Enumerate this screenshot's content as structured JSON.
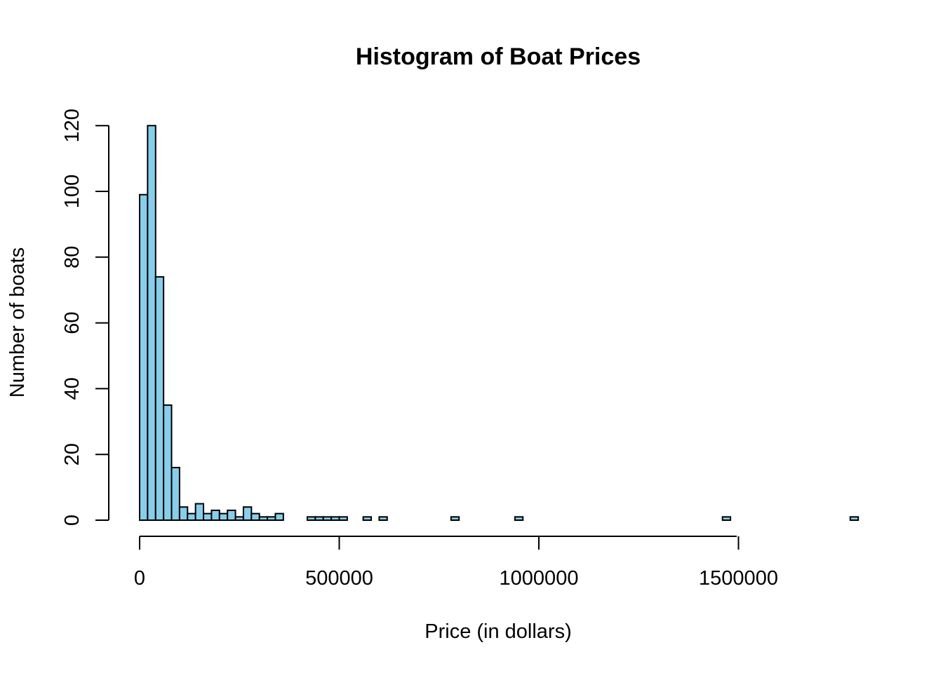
{
  "chart_data": {
    "type": "bar",
    "title": "Histogram of Boat Prices",
    "xlabel": "Price (in dollars)",
    "ylabel": "Number of boats",
    "bar_color": "#87CEEB",
    "edge_color": "#000000",
    "bin_width": 20000,
    "x_ticks": [
      0,
      500000,
      1000000,
      1500000
    ],
    "x_tick_labels": [
      "0",
      "500000",
      "1000000",
      "1500000"
    ],
    "y_ticks": [
      0,
      20,
      40,
      60,
      80,
      100,
      120
    ],
    "y_tick_labels": [
      "0",
      "20",
      "40",
      "60",
      "80",
      "100",
      "120"
    ],
    "xlim": [
      0,
      1800000
    ],
    "ylim": [
      0,
      120
    ],
    "bin_starts": [
      0,
      20000,
      40000,
      60000,
      80000,
      100000,
      120000,
      140000,
      160000,
      180000,
      200000,
      220000,
      240000,
      260000,
      280000,
      300000,
      320000,
      340000,
      360000,
      380000,
      400000,
      420000,
      440000,
      460000,
      480000,
      500000,
      520000,
      540000,
      560000,
      580000,
      600000,
      620000,
      640000,
      660000,
      680000,
      700000,
      720000,
      740000,
      760000,
      780000,
      800000,
      820000,
      840000,
      860000,
      880000,
      900000,
      920000,
      940000,
      960000,
      980000,
      1000000,
      1020000,
      1040000,
      1060000,
      1080000,
      1100000,
      1120000,
      1140000,
      1160000,
      1180000,
      1200000,
      1220000,
      1240000,
      1260000,
      1280000,
      1300000,
      1320000,
      1340000,
      1360000,
      1380000,
      1400000,
      1420000,
      1440000,
      1460000,
      1480000,
      1500000,
      1520000,
      1540000,
      1560000,
      1580000,
      1600000,
      1620000,
      1640000,
      1660000,
      1680000,
      1700000,
      1720000,
      1740000,
      1760000,
      1780000
    ],
    "counts": [
      99,
      120,
      74,
      35,
      16,
      4,
      2,
      5,
      2,
      3,
      2,
      3,
      1,
      4,
      2,
      1,
      1,
      2,
      0,
      0,
      0,
      1,
      1,
      1,
      1,
      1,
      0,
      0,
      1,
      0,
      1,
      0,
      0,
      0,
      0,
      0,
      0,
      0,
      0,
      1,
      0,
      0,
      0,
      0,
      0,
      0,
      0,
      1,
      0,
      0,
      0,
      0,
      0,
      0,
      0,
      0,
      0,
      0,
      0,
      0,
      0,
      0,
      0,
      0,
      0,
      0,
      0,
      0,
      0,
      0,
      0,
      0,
      0,
      1,
      0,
      0,
      0,
      0,
      0,
      0,
      0,
      0,
      0,
      0,
      0,
      0,
      0,
      0,
      0,
      1
    ]
  }
}
